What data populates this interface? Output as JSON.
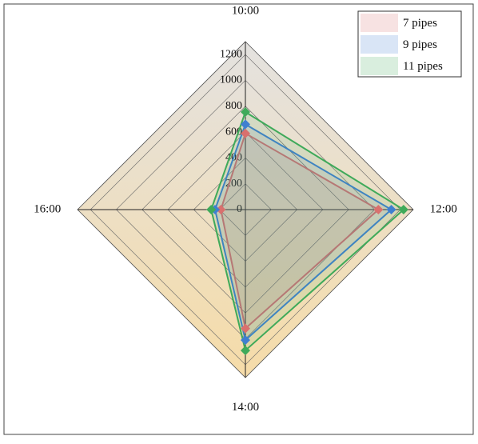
{
  "chart_data": {
    "type": "radar",
    "categories": [
      "10:00",
      "12:00",
      "14:00",
      "16:00"
    ],
    "series": [
      {
        "name": "7 pipes",
        "color": "#d9706e",
        "values": [
          590,
          1030,
          920,
          190
        ]
      },
      {
        "name": "9 pipes",
        "color": "#3f7fd0",
        "values": [
          660,
          1130,
          1010,
          235
        ]
      },
      {
        "name": "11 pipes",
        "color": "#3faa5a",
        "values": [
          755,
          1225,
          1090,
          265
        ]
      }
    ],
    "rlim": [
      0,
      1300
    ],
    "rticks": [
      0,
      200,
      400,
      600,
      800,
      1000,
      1200
    ],
    "grid": true,
    "legend": "upper right"
  }
}
